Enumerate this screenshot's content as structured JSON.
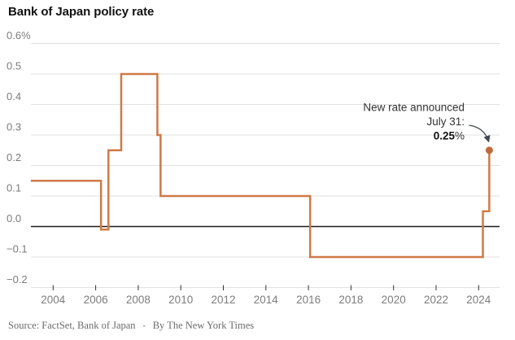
{
  "header": {
    "title": "Bank of Japan policy rate"
  },
  "chart_data": {
    "type": "line",
    "subtype": "step",
    "title": "Bank of Japan policy rate",
    "unit": "%",
    "grid": true,
    "legend": "none",
    "xlabel": "",
    "ylabel": "",
    "x_range": [
      2003,
      2025
    ],
    "ylim": [
      -0.2,
      0.6
    ],
    "x_ticks": [
      2004,
      2006,
      2008,
      2010,
      2012,
      2014,
      2016,
      2018,
      2020,
      2022,
      2024
    ],
    "y_ticks": [
      {
        "label": "0.6%",
        "value": 0.6
      },
      {
        "label": "0.5",
        "value": 0.5
      },
      {
        "label": "0.4",
        "value": 0.4
      },
      {
        "label": "0.3",
        "value": 0.3
      },
      {
        "label": "0.2",
        "value": 0.2
      },
      {
        "label": "0.1",
        "value": 0.1
      },
      {
        "label": "0.0",
        "value": 0.0
      },
      {
        "label": "−0.1",
        "value": -0.1
      },
      {
        "label": "−0.2",
        "value": -0.2
      }
    ],
    "steps": [
      {
        "year": 2002.95,
        "value": 0.15
      },
      {
        "year": 2006.25,
        "value": -0.01
      },
      {
        "year": 2006.6,
        "value": 0.25
      },
      {
        "year": 2007.2,
        "value": 0.5
      },
      {
        "year": 2008.9,
        "value": 0.3
      },
      {
        "year": 2009.05,
        "value": 0.1
      },
      {
        "year": 2016.08,
        "value": -0.1
      },
      {
        "year": 2024.2,
        "value": 0.05
      },
      {
        "year": 2024.5,
        "value": 0.25
      }
    ],
    "end_point": {
      "year": 2024.5,
      "value": 0.25
    },
    "annotation": {
      "line1": "New rate announced",
      "line2": "July 31:",
      "value": "0.25",
      "suffix": "%"
    },
    "colors": {
      "line": "#cf7a47",
      "dot": "#c06a3a",
      "grid": "#e2e2e2",
      "zero_line": "#1c1c1c",
      "axis_text": "#7c7c7c",
      "annotation_text": "#333333",
      "annotation_bold": "#121212",
      "arrow": "#42484d"
    }
  },
  "footer": {
    "source": "Source: FactSet, Bank of Japan",
    "separator": "•",
    "byline": "By The New York Times"
  }
}
